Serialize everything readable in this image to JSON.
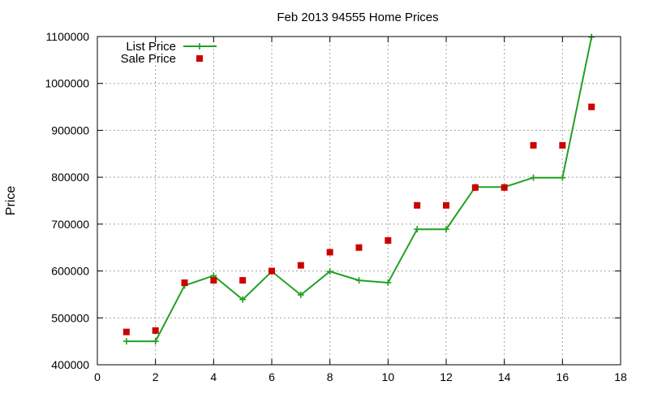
{
  "chart_data": {
    "type": "line",
    "title": "Feb 2013 94555 Home Prices",
    "xlabel": "",
    "ylabel": "Price",
    "xlim": [
      0,
      18
    ],
    "ylim": [
      400000,
      1100000
    ],
    "xticks": [
      0,
      2,
      4,
      6,
      8,
      10,
      12,
      14,
      16,
      18
    ],
    "yticks": [
      400000,
      500000,
      600000,
      700000,
      800000,
      900000,
      1000000,
      1100000
    ],
    "xtick_labels": [
      "0",
      "2",
      "4",
      "6",
      "8",
      "10",
      "12",
      "14",
      "16",
      "18"
    ],
    "ytick_labels": [
      "400000",
      "500000",
      "600000",
      "700000",
      "800000",
      "900000",
      "1000000",
      "1100000"
    ],
    "grid": true,
    "legend_position": "top-left",
    "series": [
      {
        "name": "List Price",
        "style": "line-points",
        "color": "#22a022",
        "marker": "plus",
        "x": [
          1,
          2,
          3,
          4,
          5,
          6,
          7,
          8,
          9,
          10,
          11,
          12,
          13,
          14,
          15,
          16,
          17
        ],
        "y": [
          450000,
          450000,
          569000,
          590000,
          539000,
          599000,
          549000,
          599000,
          580000,
          575000,
          689000,
          689000,
          779000,
          779000,
          799000,
          799000,
          1099000
        ]
      },
      {
        "name": "Sale Price",
        "style": "points",
        "color": "#cc0000",
        "marker": "square",
        "x": [
          1,
          2,
          3,
          4,
          5,
          6,
          7,
          8,
          9,
          10,
          11,
          12,
          13,
          14,
          15,
          16,
          17
        ],
        "y": [
          470000,
          473000,
          575000,
          580000,
          580000,
          600000,
          612000,
          640000,
          650000,
          665000,
          740000,
          740000,
          778000,
          778000,
          868000,
          868000,
          950000
        ]
      }
    ]
  }
}
